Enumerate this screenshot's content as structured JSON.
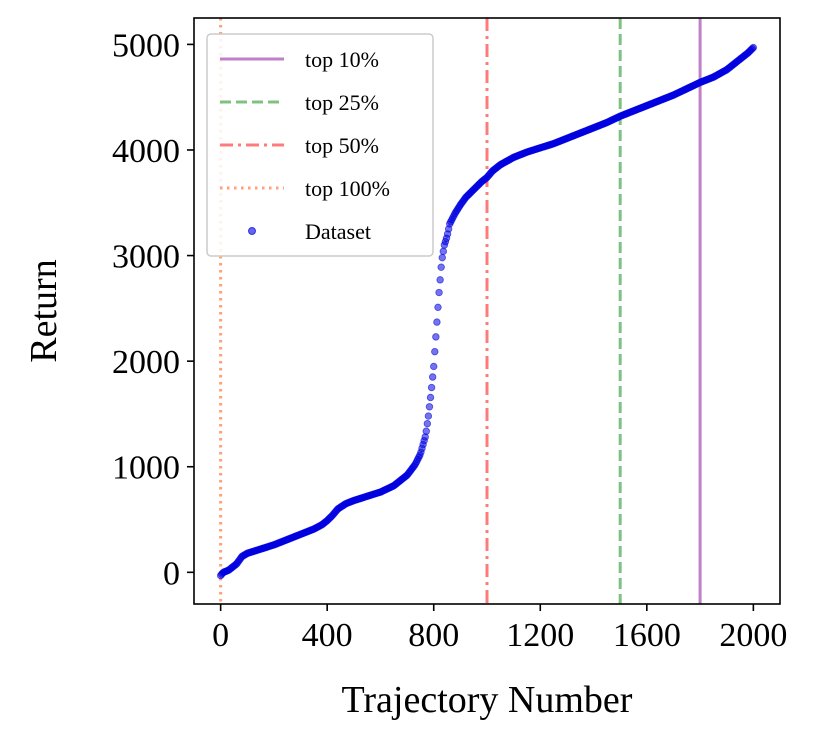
{
  "chart_data": {
    "type": "scatter",
    "xlabel": "Trajectory Number",
    "ylabel": "Return",
    "xlim": [
      -100,
      2100
    ],
    "ylim": [
      -300,
      5250
    ],
    "xticks": [
      0,
      400,
      800,
      1200,
      1600,
      2000
    ],
    "yticks": [
      0,
      1000,
      2000,
      3000,
      4000,
      5000
    ],
    "xtick_labels": [
      "0",
      "400",
      "800",
      "1200",
      "1600",
      "2000"
    ],
    "ytick_labels": [
      "0",
      "1000",
      "2000",
      "3000",
      "4000",
      "5000"
    ],
    "grid": false,
    "legend_position": "top-left",
    "vlines": [
      {
        "name": "top 10%",
        "x": 1800,
        "color": "#bf80c8",
        "style": "solid"
      },
      {
        "name": "top 25%",
        "x": 1500,
        "color": "#80c080",
        "style": "dashed"
      },
      {
        "name": "top 50%",
        "x": 1000,
        "color": "#ff7b7b",
        "style": "dashdot"
      },
      {
        "name": "top 100%",
        "x": 0,
        "color": "#ffa07a",
        "style": "dotted"
      }
    ],
    "series": [
      {
        "name": "Dataset",
        "color": "#0000e0",
        "x": [
          0,
          10,
          30,
          60,
          80,
          100,
          150,
          200,
          250,
          300,
          350,
          380,
          400,
          420,
          440,
          470,
          500,
          550,
          600,
          650,
          700,
          730,
          750,
          770,
          780,
          790,
          800,
          810,
          820,
          830,
          840,
          850,
          860,
          880,
          900,
          920,
          940,
          960,
          980,
          1000,
          1020,
          1050,
          1100,
          1150,
          1200,
          1250,
          1300,
          1350,
          1400,
          1450,
          1500,
          1550,
          1600,
          1650,
          1700,
          1750,
          1800,
          1850,
          1900,
          1930,
          1960,
          1980,
          2000
        ],
        "y": [
          -30,
          0,
          20,
          80,
          150,
          180,
          220,
          260,
          310,
          360,
          410,
          450,
          490,
          540,
          600,
          650,
          680,
          720,
          760,
          820,
          920,
          1020,
          1120,
          1300,
          1480,
          1700,
          1950,
          2300,
          2650,
          2950,
          3100,
          3180,
          3300,
          3400,
          3480,
          3550,
          3600,
          3650,
          3700,
          3740,
          3800,
          3860,
          3930,
          3980,
          4020,
          4060,
          4110,
          4160,
          4210,
          4260,
          4320,
          4370,
          4420,
          4470,
          4520,
          4580,
          4640,
          4690,
          4760,
          4820,
          4880,
          4920,
          4970
        ]
      }
    ]
  }
}
